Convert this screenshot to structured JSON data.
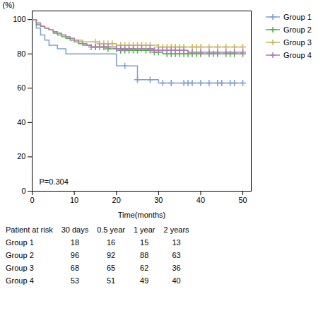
{
  "chart_data": {
    "type": "step",
    "xlabel": "Time(months)",
    "ylabel": "(%)",
    "xlim": [
      0,
      52
    ],
    "ylim": [
      0,
      105
    ],
    "xticks": [
      0,
      10,
      20,
      30,
      40,
      50
    ],
    "yticks": [
      0,
      20,
      40,
      60,
      80,
      100
    ],
    "grid": false,
    "legend": "right",
    "marker": "plus",
    "annotation": "P=0.304",
    "series": [
      {
        "name": "Group 1",
        "color": "#7b9fd4",
        "x": [
          0,
          1,
          2,
          3,
          4,
          6,
          8,
          20,
          25,
          30,
          50
        ],
        "values": [
          100,
          95,
          91,
          88,
          85,
          83,
          80,
          73,
          65,
          63,
          63
        ],
        "censors": [
          22,
          25,
          28,
          31,
          33,
          36,
          37,
          38,
          40,
          42,
          44,
          45,
          47,
          48,
          50
        ],
        "censor_values": [
          73,
          65,
          65,
          63,
          63,
          63,
          63,
          63,
          63,
          63,
          63,
          63,
          63,
          63,
          63
        ]
      },
      {
        "name": "Group 2",
        "color": "#4daf4a",
        "x": [
          0,
          1,
          2,
          3,
          4,
          5,
          6,
          7,
          8,
          9,
          10,
          11,
          12,
          14,
          18,
          21,
          29,
          31,
          50
        ],
        "values": [
          100,
          97,
          96,
          95,
          94,
          92,
          91,
          90,
          89,
          88,
          87,
          86,
          85,
          84,
          83,
          82,
          81,
          80,
          80
        ],
        "censors": [
          15,
          17,
          18,
          20,
          21,
          22,
          23,
          24,
          25,
          27,
          28,
          29,
          30,
          32,
          33,
          34,
          35,
          36,
          37,
          38,
          39,
          40,
          42,
          43,
          44,
          46,
          47,
          48,
          50
        ],
        "censor_values": [
          84,
          84,
          83,
          83,
          82,
          82,
          82,
          82,
          82,
          82,
          82,
          81,
          81,
          80,
          80,
          80,
          80,
          80,
          80,
          80,
          80,
          80,
          80,
          80,
          80,
          80,
          80,
          80,
          80
        ]
      },
      {
        "name": "Group 3",
        "color": "#c8b560",
        "x": [
          0,
          1,
          2,
          3,
          4,
          5,
          6,
          7,
          8,
          9,
          10,
          12,
          16,
          20,
          30,
          50
        ],
        "values": [
          100,
          98,
          96,
          95,
          94,
          93,
          92,
          91,
          90,
          89,
          88,
          87,
          86,
          85,
          84,
          84
        ],
        "censors": [
          15,
          16,
          17,
          18,
          19,
          21,
          22,
          23,
          24,
          25,
          26,
          27,
          28,
          30,
          31,
          32,
          33,
          34,
          35,
          36,
          38,
          39,
          40,
          42,
          44,
          46,
          48,
          50
        ],
        "censor_values": [
          87,
          86,
          86,
          86,
          86,
          85,
          85,
          85,
          85,
          85,
          85,
          85,
          85,
          84,
          84,
          84,
          84,
          84,
          84,
          84,
          84,
          84,
          84,
          84,
          84,
          84,
          84,
          84
        ]
      },
      {
        "name": "Group 4",
        "color": "#b07ab8",
        "x": [
          0,
          1,
          2,
          3,
          4,
          5,
          6,
          7,
          8,
          9,
          10,
          11,
          12,
          13,
          14,
          20,
          29,
          37,
          50
        ],
        "values": [
          100,
          98,
          96,
          95,
          94,
          93,
          92,
          91,
          90,
          89,
          88,
          87,
          86,
          85,
          84,
          83,
          82,
          81,
          81
        ],
        "censors": [
          14,
          15,
          16,
          17,
          18,
          20,
          21,
          22,
          23,
          24,
          26,
          28,
          29,
          30,
          31,
          32,
          33,
          34,
          35,
          36,
          38,
          40,
          42,
          44,
          46,
          48,
          50
        ],
        "censor_values": [
          84,
          84,
          84,
          84,
          84,
          83,
          83,
          83,
          83,
          83,
          83,
          83,
          82,
          82,
          82,
          82,
          82,
          82,
          82,
          82,
          81,
          81,
          81,
          81,
          81,
          81,
          81
        ]
      }
    ],
    "risk_table": {
      "header": [
        "Patient at risk",
        "30 days",
        "0.5 year",
        "1 year",
        "2 years"
      ],
      "rows": [
        {
          "name": "Group 1",
          "values": [
            18,
            16,
            15,
            13
          ]
        },
        {
          "name": "Group 2",
          "values": [
            96,
            92,
            88,
            63
          ]
        },
        {
          "name": "Group 3",
          "values": [
            68,
            65,
            62,
            36
          ]
        },
        {
          "name": "Group 4",
          "values": [
            53,
            51,
            49,
            40
          ]
        }
      ]
    }
  }
}
